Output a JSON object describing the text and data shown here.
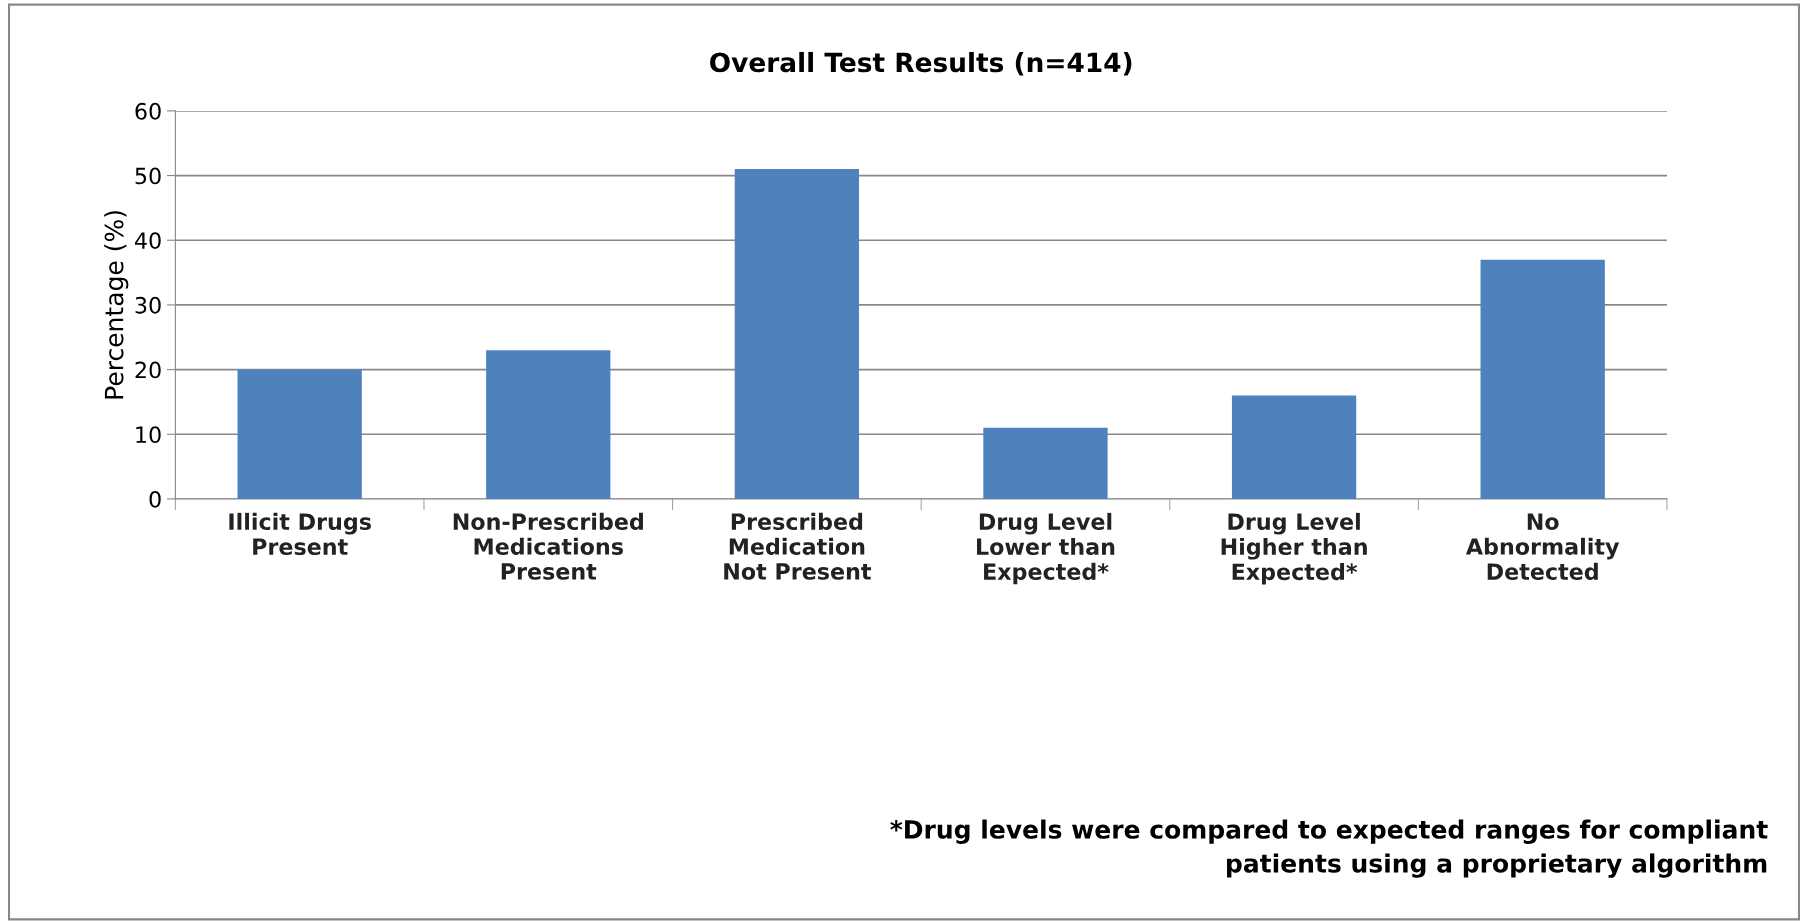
{
  "chart_data": {
    "type": "bar",
    "title": "Overall Test Results (n=414)",
    "ylabel": "Percentage (%)",
    "categories": [
      "Illicit Drugs\nPresent",
      "Non-Prescribed\nMedications\nPresent",
      "Prescribed\nMedication\nNot Present",
      "Drug Level\nLower than\nExpected*",
      "Drug Level\nHigher than\nExpected*",
      "No\nAbnormality\nDetected"
    ],
    "values": [
      20,
      23,
      51,
      11,
      16,
      37
    ],
    "color": "#4f81bd",
    "ylim": [
      0,
      60
    ],
    "yticks": [
      0,
      10,
      20,
      30,
      40,
      50,
      60
    ],
    "grid": "y",
    "legend": false,
    "annotations": [
      "*Drug levels were compared to expected ranges for compliant\npatients using a proprietary algorithm"
    ]
  }
}
